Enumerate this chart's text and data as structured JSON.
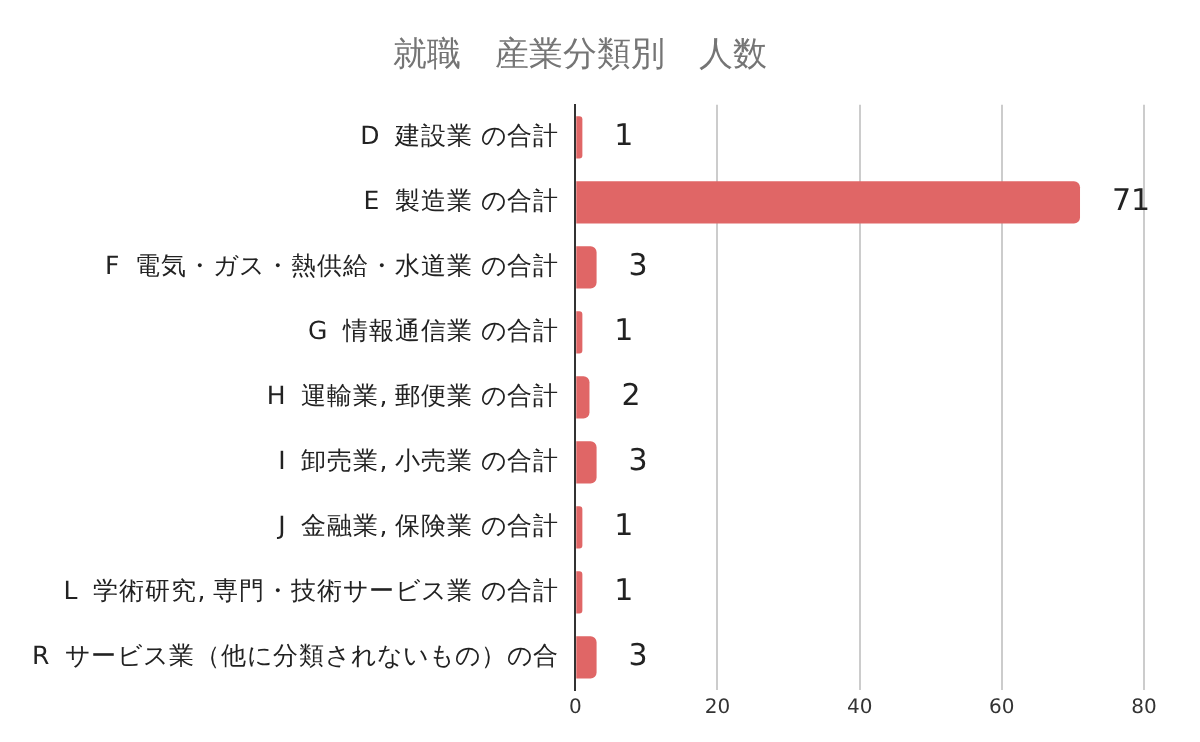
{
  "chart_data": {
    "type": "bar",
    "orientation": "horizontal",
    "title": "就職　産業分類別　人数",
    "categories": [
      "D  建設業 の合計",
      "E  製造業 の合計",
      "F  電気・ガス・熱供給・水道業 の合計",
      "G  情報通信業 の合計",
      "H  運輸業, 郵便業 の合計",
      "I  卸売業, 小売業 の合計",
      "J  金融業, 保険業 の合計",
      "L  学術研究, 専門・技術サービス業 の合計",
      "R  サービス業（他に分類されないもの）の合"
    ],
    "values": [
      1,
      71,
      3,
      1,
      2,
      3,
      1,
      1,
      3
    ],
    "color": "#e06666",
    "xlim": [
      0,
      80
    ],
    "xticks": [
      0,
      20,
      40,
      60,
      80
    ],
    "grid": "x",
    "data_labels": true,
    "legend": false
  }
}
